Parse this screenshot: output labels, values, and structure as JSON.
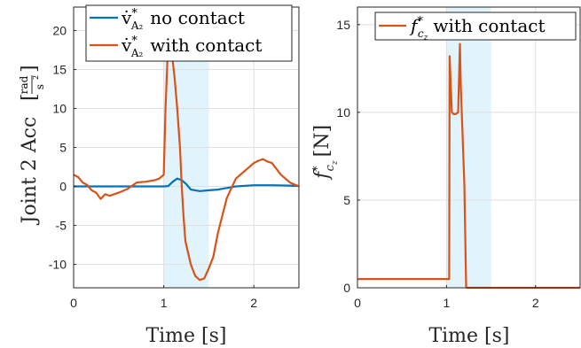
{
  "chart_data": [
    {
      "type": "line",
      "xlabel": "Time [s]",
      "ylabel_main": "Joint 2 Acc",
      "ylabel_unit_num": "rad",
      "ylabel_unit_den": "s",
      "xlim": [
        0,
        2.5
      ],
      "ylim": [
        -13,
        23
      ],
      "xticks": [
        0,
        1,
        2
      ],
      "yticks": [
        -10,
        -5,
        0,
        5,
        10,
        15,
        20
      ],
      "shaded_span": [
        1.0,
        1.5
      ],
      "grid": true,
      "legend_position": "top",
      "series": [
        {
          "name_base": "v̇",
          "name_sup": "*",
          "name_sub": "A₂",
          "name_suffix": "no contact",
          "color": "#0072BD",
          "x": [
            0,
            0.3,
            0.6,
            0.9,
            1.0,
            1.05,
            1.1,
            1.15,
            1.2,
            1.25,
            1.3,
            1.4,
            1.5,
            1.6,
            1.7,
            1.8,
            2.0,
            2.2,
            2.4,
            2.5
          ],
          "y": [
            0,
            0,
            0,
            0,
            0,
            0.05,
            0.6,
            1.0,
            0.8,
            0.3,
            -0.4,
            -0.6,
            -0.5,
            -0.4,
            -0.2,
            0.0,
            0.15,
            0.15,
            0.1,
            0.05
          ]
        },
        {
          "name_base": "v̇",
          "name_sup": "*",
          "name_sub": "A₂",
          "name_suffix": "with contact",
          "color": "#D95319",
          "x": [
            0,
            0.05,
            0.1,
            0.15,
            0.2,
            0.25,
            0.3,
            0.35,
            0.4,
            0.5,
            0.6,
            0.7,
            0.8,
            0.9,
            0.95,
            1.0,
            1.02,
            1.04,
            1.06,
            1.08,
            1.1,
            1.12,
            1.15,
            1.18,
            1.2,
            1.22,
            1.24,
            1.3,
            1.35,
            1.4,
            1.45,
            1.5,
            1.55,
            1.6,
            1.7,
            1.8,
            1.9,
            2.0,
            2.05,
            2.1,
            2.15,
            2.2,
            2.3,
            2.4,
            2.5
          ],
          "y": [
            1.5,
            1.2,
            0.5,
            0.2,
            -0.5,
            -0.8,
            -1.6,
            -1.0,
            -1.2,
            -0.8,
            -0.3,
            0.5,
            0.6,
            0.8,
            1.0,
            1.5,
            10,
            16,
            19,
            18,
            16,
            14,
            10,
            5,
            0,
            -4,
            -7,
            -10,
            -11.5,
            -12,
            -11.8,
            -10.5,
            -9,
            -6,
            -1.5,
            1.0,
            2.0,
            3.0,
            3.3,
            3.5,
            3.2,
            3.0,
            1.5,
            0.5,
            0.0
          ]
        }
      ]
    },
    {
      "type": "line",
      "xlabel": "Time [s]",
      "ylabel_main": "f",
      "ylabel_sup": "*",
      "ylabel_sub": "c",
      "ylabel_subsub": "z",
      "ylabel_unit": "[N]",
      "xlim": [
        0,
        2.5
      ],
      "ylim": [
        0,
        16
      ],
      "xticks": [
        0,
        1,
        2
      ],
      "yticks": [
        0,
        5,
        10,
        15
      ],
      "shaded_span": [
        1.0,
        1.5
      ],
      "grid": true,
      "legend_position": "top-right",
      "series": [
        {
          "name_base": "f",
          "name_sup": "*",
          "name_sub": "c",
          "name_subsub": "z",
          "name_suffix": "with contact",
          "color": "#D95319",
          "x": [
            0,
            1.03,
            1.035,
            1.06,
            1.08,
            1.09,
            1.1,
            1.13,
            1.15,
            1.16,
            1.2,
            1.22,
            1.23,
            1.5,
            2.5
          ],
          "y": [
            0.5,
            0.5,
            13.2,
            10.0,
            9.9,
            9.9,
            9.9,
            10.0,
            13.9,
            11.5,
            5.9,
            0.02,
            0.0,
            0.0,
            0.0
          ]
        }
      ]
    }
  ]
}
